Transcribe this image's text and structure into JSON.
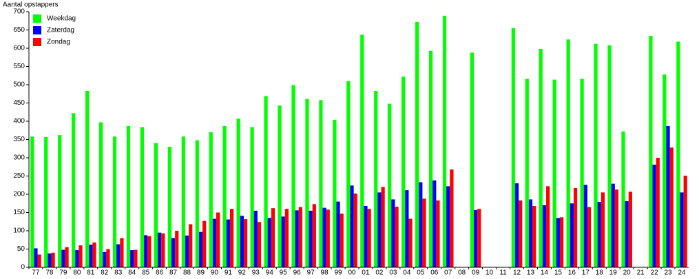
{
  "chart_data": {
    "type": "bar",
    "y_label": "Aantal opstappers",
    "categories": [
      "77",
      "78",
      "79",
      "80",
      "81",
      "82",
      "83",
      "84",
      "85",
      "86",
      "87",
      "88",
      "89",
      "90",
      "91",
      "92",
      "93",
      "94",
      "95",
      "96",
      "97",
      "98",
      "99",
      "00",
      "01",
      "02",
      "03",
      "04",
      "05",
      "06",
      "07",
      "08",
      "09",
      "10",
      "11",
      "12",
      "13",
      "14",
      "15",
      "16",
      "17",
      "18",
      "19",
      "20",
      "21",
      "22",
      "23",
      "24"
    ],
    "series": [
      {
        "name": "Weekdag",
        "color": "#00ff00",
        "values": [
          358,
          357,
          362,
          422,
          483,
          397,
          358,
          387,
          384,
          340,
          330,
          358,
          348,
          370,
          387,
          407,
          384,
          469,
          443,
          499,
          461,
          458,
          404,
          510,
          637,
          483,
          448,
          522,
          672,
          593,
          689,
          null,
          588,
          null,
          null,
          655,
          516,
          598,
          514,
          624,
          516,
          612,
          608,
          372,
          null,
          634,
          528,
          618
        ]
      },
      {
        "name": "Zaterdag",
        "color": "#0000ff",
        "values": [
          52,
          38,
          48,
          47,
          62,
          42,
          63,
          47,
          88,
          95,
          80,
          87,
          97,
          133,
          131,
          141,
          155,
          135,
          139,
          156,
          155,
          163,
          180,
          224,
          168,
          205,
          186,
          211,
          233,
          238,
          222,
          null,
          157,
          null,
          null,
          230,
          186,
          170,
          135,
          175,
          226,
          179,
          229,
          181,
          null,
          281,
          387,
          205
        ]
      },
      {
        "name": "Zondag",
        "color": "#ff0000",
        "values": [
          35,
          40,
          55,
          60,
          68,
          50,
          80,
          48,
          85,
          93,
          100,
          118,
          127,
          150,
          160,
          132,
          124,
          162,
          160,
          165,
          173,
          158,
          147,
          202,
          160,
          220,
          166,
          133,
          188,
          183,
          268,
          null,
          160,
          null,
          null,
          183,
          168,
          222,
          137,
          217,
          165,
          205,
          213,
          207,
          null,
          300,
          328,
          251
        ]
      }
    ],
    "ylim": [
      0,
      700
    ],
    "yticks": [
      0,
      50,
      100,
      150,
      200,
      250,
      300,
      350,
      400,
      450,
      500,
      550,
      600,
      650,
      700
    ],
    "legend": "top-left",
    "grid": false
  }
}
